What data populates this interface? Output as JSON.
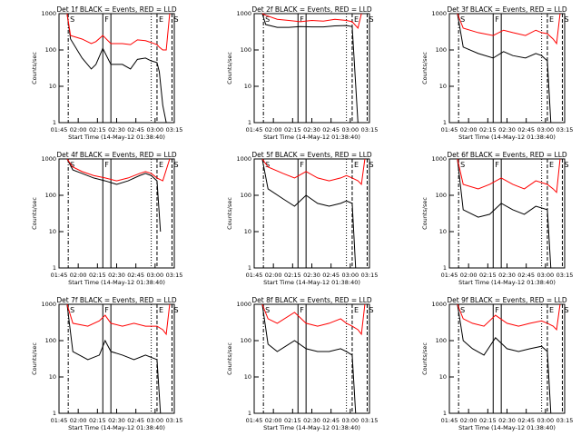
{
  "figure": {
    "background": "#ffffff",
    "panel_titles": [
      "Det 1f BLACK = Events, RED = LLD",
      "Det 2f BLACK = Events, RED = LLD",
      "Det 3f BLACK = Events, RED = LLD",
      "Det 4f BLACK = Events, RED = LLD",
      "Det 5f BLACK = Events, RED = LLD",
      "Det 6f BLACK = Events, RED = LLD",
      "Det 7f BLACK = Events, RED = LLD",
      "Det 8f BLACK = Events, RED = LLD",
      "Det 9f BLACK = Events, RED = LLD"
    ]
  },
  "chart_data": [
    {
      "type": "line",
      "title": "Det 1f BLACK = Events, RED = LLD",
      "xlabel": "Start Time (14-May-12 01:38:40)",
      "ylabel": "Counts/sec",
      "x_ticks": [
        "01:45",
        "02:00",
        "02:15",
        "02:30",
        "02:45",
        "03:00",
        "03:15"
      ],
      "y_ticks": [
        "1",
        "10",
        "100",
        "1000"
      ],
      "ylim": [
        1,
        1000
      ],
      "y_scale": "log",
      "marker_labels": [
        "S",
        "F",
        "E",
        "S"
      ],
      "colors": {
        "events": "#000000",
        "lld": "#ff0000"
      },
      "series": [
        {
          "name": "BLACK = Events",
          "x": [
            0.07,
            0.1,
            0.2,
            0.28,
            0.32,
            0.38,
            0.45,
            0.55,
            0.62,
            0.68,
            0.75,
            0.8,
            0.85,
            0.87,
            0.9,
            0.93,
            0.96
          ],
          "y": [
            1000,
            200,
            60,
            30,
            40,
            110,
            40,
            40,
            30,
            55,
            60,
            50,
            45,
            25,
            3,
            0,
            0
          ]
        },
        {
          "name": "RED = LLD",
          "x": [
            0.07,
            0.1,
            0.2,
            0.28,
            0.32,
            0.38,
            0.45,
            0.55,
            0.62,
            0.68,
            0.75,
            0.8,
            0.85,
            0.87,
            0.9,
            0.93,
            0.96
          ],
          "y": [
            1000,
            250,
            200,
            150,
            170,
            250,
            150,
            150,
            140,
            190,
            180,
            160,
            140,
            120,
            100,
            100,
            1000
          ]
        }
      ]
    },
    {
      "type": "line",
      "title": "Det 2f BLACK = Events, RED = LLD",
      "xlabel": "Start Time (14-May-12 01:38:40)",
      "ylabel": "Counts/sec",
      "x_ticks": [
        "01:45",
        "02:00",
        "02:15",
        "02:30",
        "02:45",
        "03:00",
        "03:15"
      ],
      "y_ticks": [
        "1",
        "10",
        "100",
        "1000"
      ],
      "ylim": [
        1,
        1000
      ],
      "y_scale": "log",
      "marker_labels": [
        "S",
        "F",
        "E",
        "S"
      ],
      "colors": {
        "events": "#000000",
        "lld": "#ff0000"
      },
      "series": [
        {
          "name": "BLACK = Events",
          "x": [
            0.07,
            0.1,
            0.2,
            0.3,
            0.4,
            0.5,
            0.6,
            0.7,
            0.8,
            0.85,
            0.9,
            0.93
          ],
          "y": [
            1000,
            500,
            420,
            420,
            440,
            430,
            430,
            460,
            470,
            440,
            0,
            0
          ]
        },
        {
          "name": "RED = LLD",
          "x": [
            0.07,
            0.1,
            0.2,
            0.3,
            0.4,
            0.5,
            0.6,
            0.7,
            0.8,
            0.85,
            0.9,
            0.93
          ],
          "y": [
            1000,
            900,
            700,
            650,
            600,
            650,
            620,
            700,
            650,
            600,
            400,
            1000
          ]
        }
      ]
    },
    {
      "type": "line",
      "title": "Det 3f BLACK = Events, RED = LLD",
      "xlabel": "Start Time (14-May-12 01:38:40)",
      "ylabel": "Counts/sec",
      "x_ticks": [
        "01:45",
        "02:00",
        "02:15",
        "02:30",
        "02:45",
        "03:00",
        "03:15"
      ],
      "y_ticks": [
        "1",
        "10",
        "100",
        "1000"
      ],
      "ylim": [
        1,
        1000
      ],
      "y_scale": "log",
      "marker_labels": [
        "S",
        "F",
        "E",
        "S"
      ],
      "colors": {
        "events": "#000000",
        "lld": "#ff0000"
      },
      "series": [
        {
          "name": "BLACK = Events",
          "x": [
            0.07,
            0.12,
            0.25,
            0.38,
            0.47,
            0.55,
            0.66,
            0.75,
            0.8,
            0.85,
            0.88
          ],
          "y": [
            1000,
            120,
            80,
            60,
            90,
            70,
            60,
            80,
            70,
            50,
            1
          ]
        },
        {
          "name": "RED = LLD",
          "x": [
            0.07,
            0.12,
            0.25,
            0.38,
            0.47,
            0.55,
            0.66,
            0.75,
            0.8,
            0.85,
            0.9,
            0.93,
            0.96
          ],
          "y": [
            1000,
            400,
            300,
            250,
            350,
            300,
            250,
            350,
            300,
            280,
            200,
            150,
            1000
          ]
        }
      ]
    },
    {
      "type": "line",
      "title": "Det 4f BLACK = Events, RED = LLD",
      "xlabel": "Start Time (14-May-12 01:38:40)",
      "ylabel": "Counts/sec",
      "x_ticks": [
        "01:45",
        "02:00",
        "02:15",
        "02:30",
        "02:45",
        "03:00",
        "03:15"
      ],
      "y_ticks": [
        "1",
        "10",
        "100",
        "1000"
      ],
      "ylim": [
        1,
        1000
      ],
      "y_scale": "log",
      "marker_labels": [
        "S",
        "F",
        "E",
        "S"
      ],
      "colors": {
        "events": "#000000",
        "lld": "#ff0000"
      },
      "series": [
        {
          "name": "BLACK = Events",
          "x": [
            0.07,
            0.12,
            0.2,
            0.3,
            0.4,
            0.5,
            0.6,
            0.7,
            0.75,
            0.8,
            0.85,
            0.88
          ],
          "y": [
            1000,
            500,
            400,
            300,
            250,
            200,
            250,
            350,
            400,
            350,
            250,
            10
          ]
        },
        {
          "name": "RED = LLD",
          "x": [
            0.07,
            0.12,
            0.2,
            0.3,
            0.4,
            0.5,
            0.6,
            0.7,
            0.75,
            0.8,
            0.85,
            0.9,
            0.96
          ],
          "y": [
            1000,
            600,
            450,
            350,
            300,
            250,
            300,
            400,
            450,
            400,
            300,
            250,
            1000
          ]
        }
      ]
    },
    {
      "type": "line",
      "title": "Det 5f BLACK = Events, RED = LLD",
      "xlabel": "Start Time (14-May-12 01:38:40)",
      "ylabel": "Counts/sec",
      "x_ticks": [
        "01:45",
        "02:00",
        "02:15",
        "02:30",
        "02:45",
        "03:00",
        "03:15"
      ],
      "y_ticks": [
        "1",
        "10",
        "100",
        "1000"
      ],
      "ylim": [
        1,
        1000
      ],
      "y_scale": "log",
      "marker_labels": [
        "S",
        "F",
        "E",
        "S"
      ],
      "colors": {
        "events": "#000000",
        "lld": "#ff0000"
      },
      "series": [
        {
          "name": "BLACK = Events",
          "x": [
            0.07,
            0.12,
            0.25,
            0.35,
            0.45,
            0.55,
            0.65,
            0.75,
            0.8,
            0.85,
            0.88
          ],
          "y": [
            1000,
            150,
            80,
            50,
            100,
            60,
            50,
            60,
            70,
            60,
            1
          ]
        },
        {
          "name": "RED = LLD",
          "x": [
            0.07,
            0.12,
            0.25,
            0.35,
            0.45,
            0.55,
            0.65,
            0.75,
            0.8,
            0.85,
            0.9,
            0.93,
            0.96
          ],
          "y": [
            1000,
            600,
            400,
            300,
            450,
            300,
            250,
            300,
            350,
            300,
            250,
            200,
            1000
          ]
        }
      ]
    },
    {
      "type": "line",
      "title": "Det 6f BLACK = Events, RED = LLD",
      "xlabel": "Start Time (14-May-12 01:38:40)",
      "ylabel": "Counts/sec",
      "x_ticks": [
        "01:45",
        "02:00",
        "02:15",
        "02:30",
        "02:45",
        "03:00",
        "03:15"
      ],
      "y_ticks": [
        "1",
        "10",
        "100",
        "1000"
      ],
      "ylim": [
        1,
        1000
      ],
      "y_scale": "log",
      "marker_labels": [
        "S",
        "F",
        "E",
        "S"
      ],
      "colors": {
        "events": "#000000",
        "lld": "#ff0000"
      },
      "series": [
        {
          "name": "BLACK = Events",
          "x": [
            0.07,
            0.12,
            0.25,
            0.35,
            0.45,
            0.55,
            0.65,
            0.75,
            0.85,
            0.88
          ],
          "y": [
            1000,
            40,
            25,
            30,
            60,
            40,
            30,
            50,
            40,
            1
          ]
        },
        {
          "name": "RED = LLD",
          "x": [
            0.07,
            0.12,
            0.25,
            0.35,
            0.45,
            0.55,
            0.65,
            0.75,
            0.85,
            0.9,
            0.93,
            0.96
          ],
          "y": [
            1000,
            200,
            150,
            200,
            300,
            200,
            150,
            250,
            200,
            150,
            120,
            1000
          ]
        }
      ]
    },
    {
      "type": "line",
      "title": "Det 7f BLACK = Events, RED = LLD",
      "xlabel": "Start Time (14-May-12 01:38:40)",
      "ylabel": "Counts/sec",
      "x_ticks": [
        "01:45",
        "02:00",
        "02:15",
        "02:30",
        "02:45",
        "03:00",
        "03:15"
      ],
      "y_ticks": [
        "1",
        "10",
        "100",
        "1000"
      ],
      "ylim": [
        1,
        1000
      ],
      "y_scale": "log",
      "marker_labels": [
        "S",
        "F",
        "E",
        "S"
      ],
      "colors": {
        "events": "#000000",
        "lld": "#ff0000"
      },
      "series": [
        {
          "name": "BLACK = Events",
          "x": [
            0.07,
            0.12,
            0.25,
            0.35,
            0.4,
            0.45,
            0.55,
            0.65,
            0.75,
            0.85,
            0.88
          ],
          "y": [
            1000,
            50,
            30,
            40,
            100,
            50,
            40,
            30,
            40,
            30,
            1
          ]
        },
        {
          "name": "RED = LLD",
          "x": [
            0.07,
            0.12,
            0.25,
            0.35,
            0.4,
            0.45,
            0.55,
            0.65,
            0.75,
            0.85,
            0.9,
            0.93,
            0.96
          ],
          "y": [
            1000,
            300,
            250,
            350,
            500,
            300,
            250,
            300,
            250,
            250,
            200,
            150,
            1000
          ]
        }
      ]
    },
    {
      "type": "line",
      "title": "Det 8f BLACK = Events, RED = LLD",
      "xlabel": "Start Time (14-May-12 01:38:40)",
      "ylabel": "Counts/sec",
      "x_ticks": [
        "01:45",
        "02:00",
        "02:15",
        "02:30",
        "02:45",
        "03:00",
        "03:15"
      ],
      "y_ticks": [
        "1",
        "10",
        "100",
        "1000"
      ],
      "ylim": [
        1,
        1000
      ],
      "y_scale": "log",
      "marker_labels": [
        "S",
        "F",
        "E",
        "S"
      ],
      "colors": {
        "events": "#000000",
        "lld": "#ff0000"
      },
      "series": [
        {
          "name": "BLACK = Events",
          "x": [
            0.07,
            0.12,
            0.2,
            0.35,
            0.45,
            0.55,
            0.65,
            0.75,
            0.8,
            0.85,
            0.88
          ],
          "y": [
            1000,
            80,
            50,
            100,
            60,
            50,
            50,
            60,
            50,
            40,
            1
          ]
        },
        {
          "name": "RED = LLD",
          "x": [
            0.07,
            0.12,
            0.2,
            0.35,
            0.45,
            0.55,
            0.65,
            0.75,
            0.8,
            0.85,
            0.9,
            0.93,
            0.96
          ],
          "y": [
            1000,
            400,
            300,
            600,
            300,
            250,
            300,
            400,
            300,
            250,
            200,
            150,
            1000
          ]
        }
      ]
    },
    {
      "type": "line",
      "title": "Det 9f BLACK = Events, RED = LLD",
      "xlabel": "Start Time (14-May-12 01:38:40)",
      "ylabel": "Counts/sec",
      "x_ticks": [
        "01:45",
        "02:00",
        "02:15",
        "02:30",
        "02:45",
        "03:00",
        "03:15"
      ],
      "y_ticks": [
        "1",
        "10",
        "100",
        "1000"
      ],
      "ylim": [
        1,
        1000
      ],
      "y_scale": "log",
      "marker_labels": [
        "S",
        "F",
        "E",
        "S"
      ],
      "colors": {
        "events": "#000000",
        "lld": "#ff0000"
      },
      "series": [
        {
          "name": "BLACK = Events",
          "x": [
            0.07,
            0.12,
            0.2,
            0.3,
            0.4,
            0.5,
            0.6,
            0.7,
            0.8,
            0.85,
            0.88
          ],
          "y": [
            1000,
            100,
            60,
            40,
            120,
            60,
            50,
            60,
            70,
            50,
            1
          ]
        },
        {
          "name": "RED = LLD",
          "x": [
            0.07,
            0.12,
            0.2,
            0.3,
            0.4,
            0.5,
            0.6,
            0.7,
            0.8,
            0.85,
            0.9,
            0.93,
            0.96
          ],
          "y": [
            1000,
            400,
            300,
            250,
            500,
            300,
            250,
            300,
            350,
            300,
            250,
            200,
            1000
          ]
        }
      ]
    }
  ]
}
